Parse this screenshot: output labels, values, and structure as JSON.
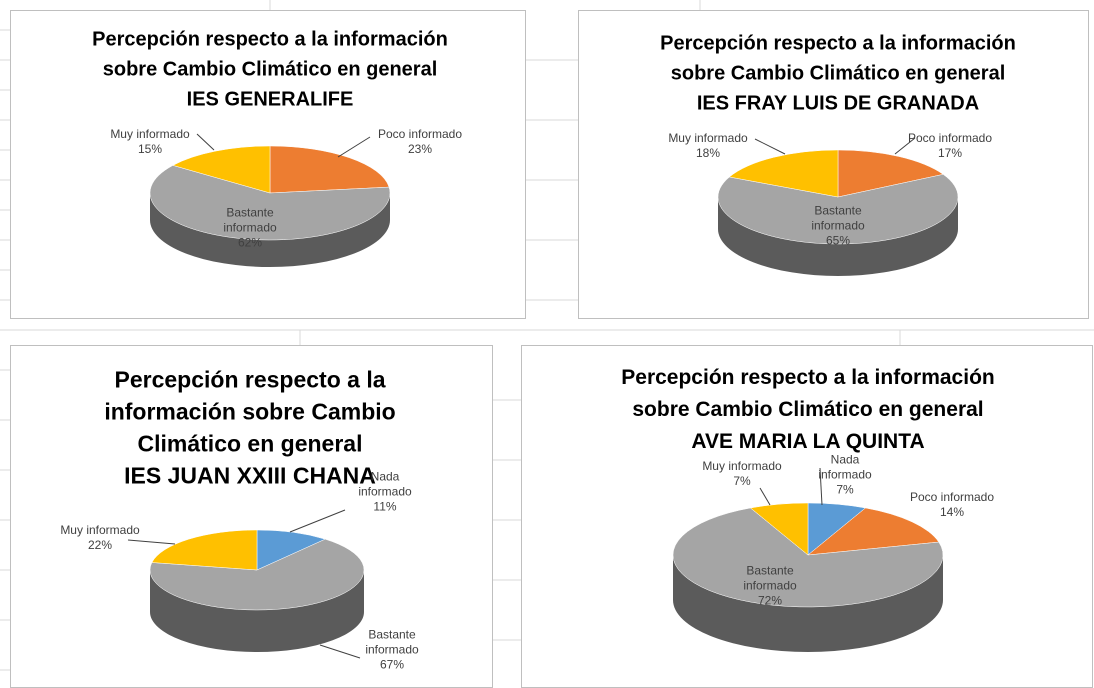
{
  "chart_data": [
    {
      "type": "pie",
      "title": [
        "Percepción respecto a la información",
        "sobre Cambio Climático en general",
        "IES GENERALIFE"
      ],
      "categories": [
        "Poco informado",
        "Bastante informado",
        "Muy informado"
      ],
      "values": [
        23,
        62,
        15
      ],
      "value_labels": [
        "23%",
        "62%",
        "15%"
      ],
      "colors": [
        "#ED7D31",
        "#A5A5A5",
        "#FFC000"
      ]
    },
    {
      "type": "pie",
      "title": [
        "Percepción respecto a la información",
        "sobre Cambio Climático en general",
        "IES FRAY LUIS DE GRANADA"
      ],
      "categories": [
        "Poco informado",
        "Bastante informado",
        "Muy informado"
      ],
      "values": [
        17,
        65,
        18
      ],
      "value_labels": [
        "17%",
        "65%",
        "18%"
      ],
      "colors": [
        "#ED7D31",
        "#A5A5A5",
        "#FFC000"
      ]
    },
    {
      "type": "pie",
      "title": [
        "Percepción respecto a la",
        "información sobre Cambio",
        "Climático en general",
        "IES JUAN XXIII CHANA"
      ],
      "categories": [
        "Nada informado",
        "Bastante informado",
        "Muy informado"
      ],
      "values": [
        11,
        67,
        22
      ],
      "value_labels": [
        "11%",
        "67%",
        "22%"
      ],
      "colors": [
        "#5B9BD5",
        "#A5A5A5",
        "#FFC000"
      ]
    },
    {
      "type": "pie",
      "title": [
        "Percepción respecto a la información",
        "sobre Cambio Climático en general",
        "AVE MARIA LA QUINTA"
      ],
      "categories": [
        "Nada informado",
        "Poco informado",
        "Bastante informado",
        "Muy informado"
      ],
      "values": [
        7,
        14,
        72,
        7
      ],
      "value_labels": [
        "7%",
        "14%",
        "72%",
        "7%"
      ],
      "colors": [
        "#5B9BD5",
        "#ED7D31",
        "#A5A5A5",
        "#FFC000"
      ]
    }
  ]
}
